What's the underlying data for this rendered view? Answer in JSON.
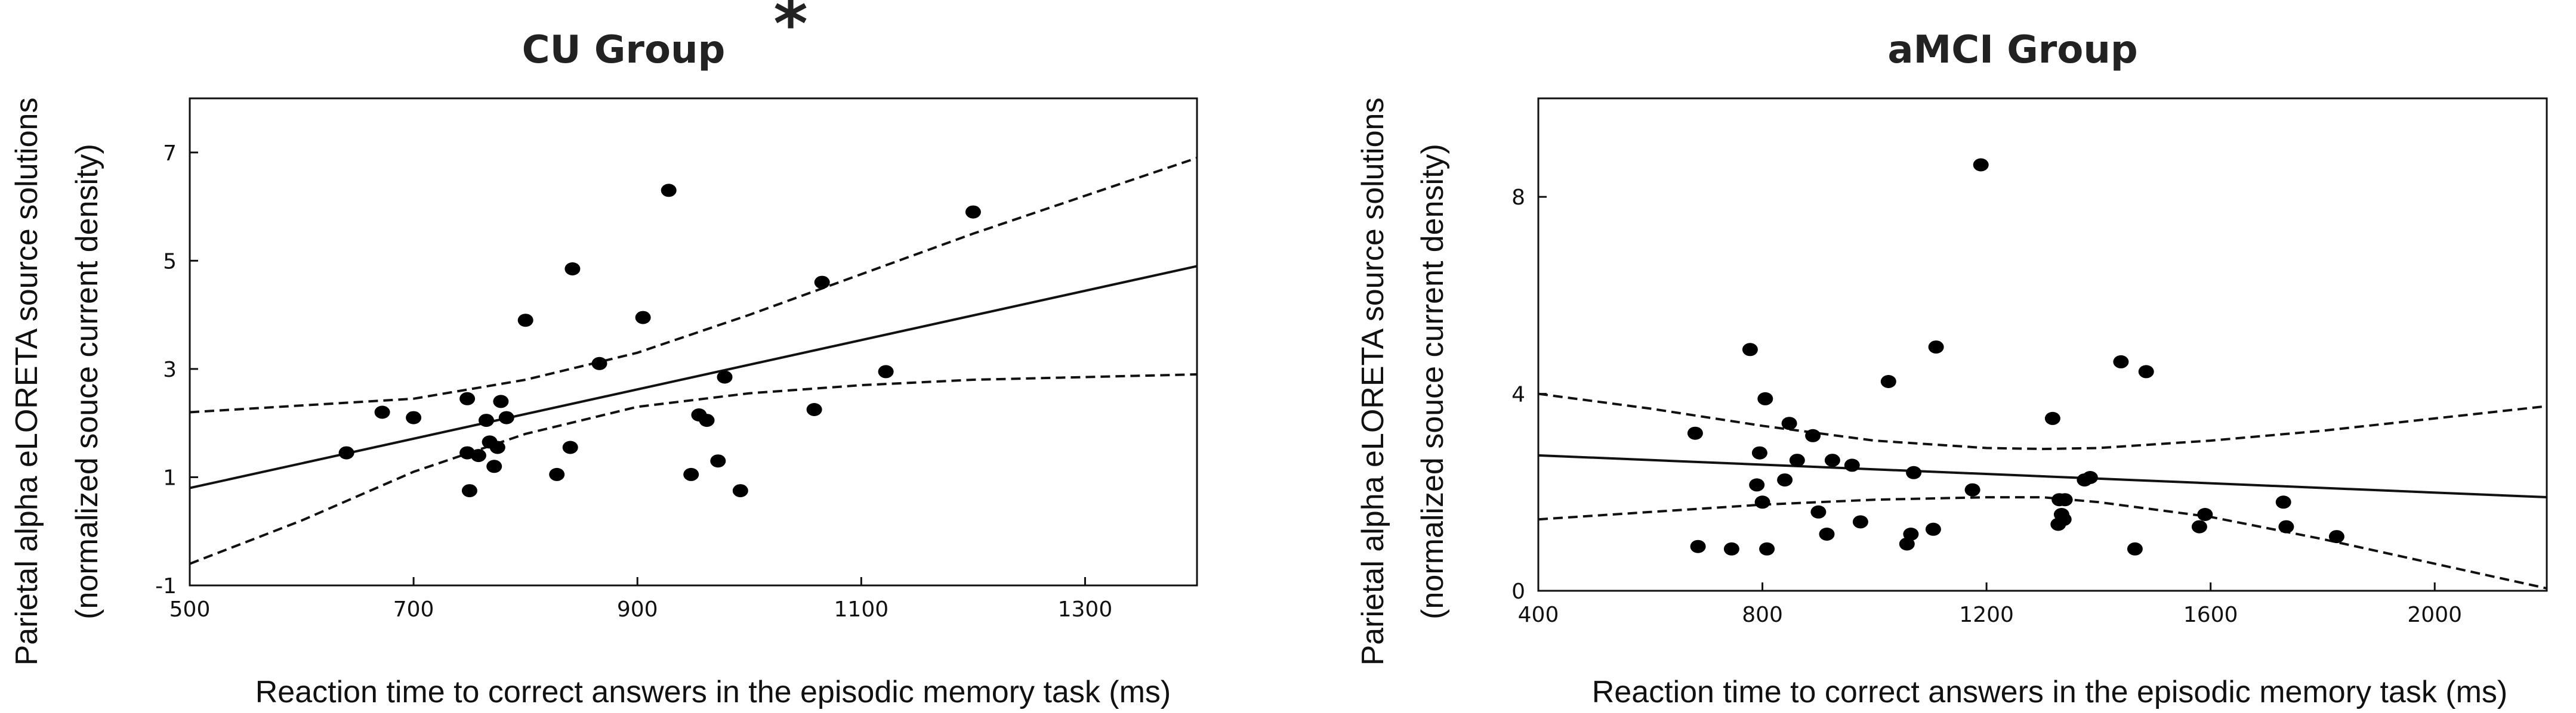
{
  "chart_data": [
    {
      "type": "scatter",
      "title": "CU Group",
      "annotation": "*",
      "xlabel": "Reaction time to correct answers in the episodic memory task (ms)",
      "ylabel": [
        "Parietal alpha  eLORETA source solutions",
        "(normalized souce current density)"
      ],
      "xlim": [
        500,
        1400
      ],
      "ylim": [
        -1,
        8
      ],
      "xticks": [
        500,
        700,
        900,
        1100,
        1300
      ],
      "yticks": [
        -1,
        1,
        3,
        5,
        7
      ],
      "grid": false,
      "fit_line": {
        "x": [
          500,
          1400
        ],
        "y": [
          0.8,
          4.9
        ]
      },
      "confidence_band": {
        "upper": {
          "x": [
            500,
            700,
            800,
            900,
            1000,
            1100,
            1200,
            1300,
            1400
          ],
          "y": [
            2.2,
            2.45,
            2.8,
            3.3,
            4.0,
            4.75,
            5.5,
            6.2,
            6.9
          ]
        },
        "lower": {
          "x": [
            500,
            600,
            700,
            800,
            900,
            1000,
            1100,
            1200,
            1300,
            1400
          ],
          "y": [
            -0.6,
            0.2,
            1.1,
            1.8,
            2.3,
            2.55,
            2.7,
            2.8,
            2.85,
            2.9
          ]
        }
      },
      "points": {
        "x": [
          640,
          672,
          700,
          748,
          748,
          750,
          758,
          765,
          768,
          772,
          775,
          778,
          783,
          800,
          828,
          840,
          842,
          866,
          905,
          928,
          948,
          955,
          962,
          972,
          978,
          992,
          1058,
          1065,
          1122,
          1200
        ],
        "y": [
          1.45,
          2.2,
          2.1,
          2.45,
          1.45,
          0.75,
          1.4,
          2.05,
          1.65,
          1.2,
          1.55,
          2.4,
          2.1,
          3.9,
          1.05,
          1.55,
          4.85,
          3.1,
          3.95,
          6.3,
          1.05,
          2.15,
          2.05,
          1.3,
          2.85,
          0.75,
          2.25,
          4.6,
          2.95,
          5.9
        ]
      }
    },
    {
      "type": "scatter",
      "title": "aMCI Group",
      "xlabel": "Reaction time to correct answers in the episodic memory task (ms)",
      "ylabel": [
        "Parietal alpha  eLORETA source solutions",
        "(normalized souce current density)"
      ],
      "xlim": [
        400,
        2200
      ],
      "ylim": [
        0,
        10
      ],
      "xticks": [
        400,
        800,
        1200,
        1600,
        2000
      ],
      "yticks": [
        0,
        4,
        8
      ],
      "grid": false,
      "fit_line": {
        "x": [
          400,
          2200
        ],
        "y": [
          2.75,
          1.9
        ]
      },
      "confidence_band": {
        "upper": {
          "x": [
            400,
            600,
            800,
            1000,
            1200,
            1300,
            1400,
            1600,
            1800,
            2000,
            2200
          ],
          "y": [
            4.0,
            3.7,
            3.35,
            3.05,
            2.9,
            2.88,
            2.9,
            3.05,
            3.25,
            3.5,
            3.75
          ]
        },
        "lower": {
          "x": [
            400,
            600,
            800,
            1000,
            1200,
            1300,
            1400,
            1600,
            1800,
            2000,
            2200
          ],
          "y": [
            1.45,
            1.6,
            1.75,
            1.85,
            1.9,
            1.9,
            1.8,
            1.5,
            1.05,
            0.55,
            0.05
          ]
        }
      },
      "points": {
        "x": [
          680,
          685,
          745,
          778,
          790,
          795,
          800,
          805,
          808,
          840,
          848,
          862,
          890,
          900,
          915,
          925,
          960,
          975,
          1025,
          1058,
          1065,
          1070,
          1105,
          1110,
          1175,
          1190,
          1318,
          1328,
          1330,
          1334,
          1338,
          1340,
          1375,
          1385,
          1440,
          1465,
          1485,
          1580,
          1590,
          1730,
          1735,
          1825
        ],
        "y": [
          3.2,
          0.9,
          0.85,
          4.9,
          2.15,
          2.8,
          1.8,
          3.9,
          0.85,
          2.25,
          3.4,
          2.65,
          3.15,
          1.6,
          1.15,
          2.65,
          2.55,
          1.4,
          4.25,
          0.95,
          1.15,
          2.4,
          1.25,
          4.95,
          2.05,
          8.65,
          3.5,
          1.35,
          1.85,
          1.55,
          1.45,
          1.85,
          2.25,
          2.3,
          4.65,
          0.85,
          4.45,
          1.3,
          1.55,
          1.8,
          1.3,
          1.1
        ]
      }
    }
  ]
}
